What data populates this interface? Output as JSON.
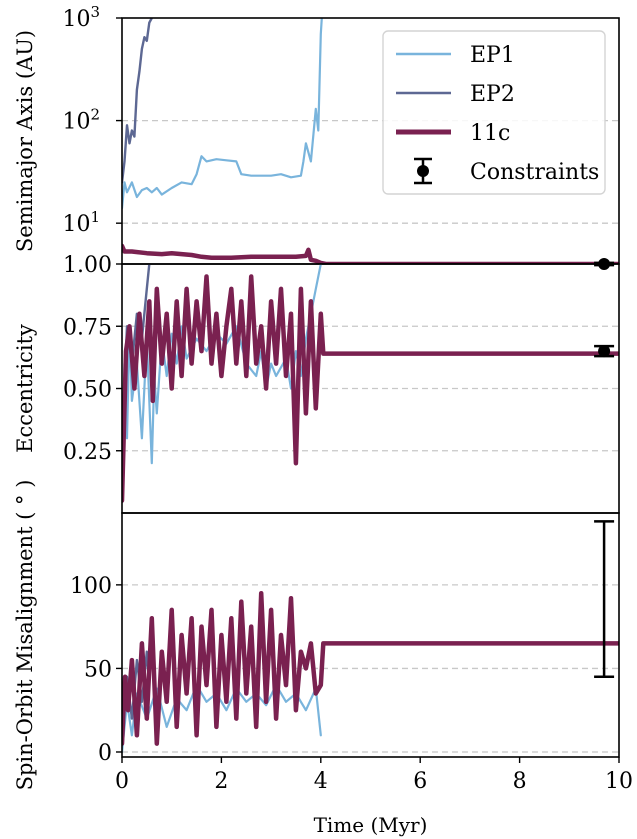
{
  "chart_data": [
    {
      "type": "line",
      "panel": "top",
      "ylabel": "Semimajor Axis (AU)",
      "yscale": "log",
      "ylim": [
        4,
        1000
      ],
      "xlim": [
        0,
        10
      ],
      "yticks": [
        {
          "v": 10,
          "label": "10"
        },
        {
          "v": 100,
          "label": "10"
        },
        {
          "v": 1000,
          "label": "10"
        }
      ],
      "ytick_sup": [
        "1",
        "2",
        "3"
      ],
      "grid": true,
      "legend": {
        "position": "top-right",
        "entries": [
          {
            "label": "EP1",
            "color": "#79b4dc",
            "kind": "line-thin"
          },
          {
            "label": "EP2",
            "color": "#5d6893",
            "kind": "line-thin"
          },
          {
            "label": "11c",
            "color": "#7a2150",
            "kind": "line-thick"
          },
          {
            "label": "Constraints",
            "color": "#000000",
            "kind": "errorbar"
          }
        ]
      },
      "series": [
        {
          "name": "EP1",
          "color": "#79b4dc",
          "x": [
            0.0,
            0.05,
            0.1,
            0.2,
            0.3,
            0.4,
            0.5,
            0.6,
            0.7,
            0.8,
            1.0,
            1.2,
            1.4,
            1.5,
            1.6,
            1.7,
            1.9,
            2.1,
            2.3,
            2.4,
            2.6,
            2.8,
            3.0,
            3.2,
            3.4,
            3.6,
            3.65,
            3.7,
            3.8,
            3.9,
            3.95,
            4.0,
            4.02
          ],
          "y": [
            14,
            25,
            20,
            25,
            18,
            21,
            22,
            20,
            22,
            19,
            22,
            25,
            24,
            30,
            45,
            40,
            42,
            41,
            40,
            30,
            29,
            29,
            29,
            30,
            28,
            29,
            40,
            60,
            40,
            130,
            80,
            700,
            1000
          ]
        },
        {
          "name": "EP2",
          "color": "#5d6893",
          "x": [
            0.0,
            0.05,
            0.1,
            0.15,
            0.2,
            0.25,
            0.3,
            0.35,
            0.4,
            0.45,
            0.5,
            0.55,
            0.6
          ],
          "y": [
            25,
            40,
            90,
            60,
            80,
            70,
            200,
            300,
            500,
            650,
            600,
            900,
            1000
          ]
        },
        {
          "name": "11c",
          "color": "#7a2150",
          "x": [
            0.0,
            0.05,
            0.2,
            0.5,
            0.8,
            1.0,
            1.4,
            1.6,
            1.8,
            2.2,
            2.6,
            3.0,
            3.5,
            3.7,
            3.75,
            3.8,
            3.9,
            4.0,
            4.1,
            5.0,
            6.0,
            7.0,
            8.0,
            9.0,
            10.0
          ],
          "y": [
            6.0,
            5.3,
            5.3,
            5.1,
            5.0,
            5.1,
            4.9,
            4.7,
            4.6,
            4.6,
            4.7,
            4.7,
            4.7,
            4.8,
            5.5,
            4.4,
            4.3,
            4.1,
            4.0,
            4.0,
            4.0,
            4.0,
            4.0,
            4.0,
            4.0
          ]
        }
      ],
      "constraint": {
        "x": 9.7,
        "y": 4.0,
        "yerr": [
          0.1,
          0.1
        ],
        "color": "#000000"
      }
    },
    {
      "type": "line",
      "panel": "middle",
      "ylabel": "Eccentricity",
      "ylim": [
        0,
        1
      ],
      "xlim": [
        0,
        10
      ],
      "yticks": [
        {
          "v": 0.25,
          "label": "0.25"
        },
        {
          "v": 0.5,
          "label": "0.50"
        },
        {
          "v": 0.75,
          "label": "0.75"
        },
        {
          "v": 1.0,
          "label": "1.00"
        }
      ],
      "grid": true,
      "series": [
        {
          "name": "EP1",
          "color": "#79b4dc",
          "x": [
            0.0,
            0.05,
            0.1,
            0.15,
            0.2,
            0.3,
            0.4,
            0.5,
            0.6,
            0.65,
            0.7,
            0.8,
            0.9,
            1.0,
            1.1,
            1.2,
            1.3,
            1.5,
            1.7,
            1.9,
            2.1,
            2.3,
            2.5,
            2.7,
            2.8,
            2.9,
            3.0,
            3.1,
            3.3,
            3.4,
            3.5,
            3.6,
            3.7,
            3.8,
            3.9,
            4.0
          ],
          "y": [
            0.05,
            0.6,
            0.3,
            0.75,
            0.45,
            0.6,
            0.3,
            0.7,
            0.2,
            0.55,
            0.4,
            0.7,
            0.55,
            0.72,
            0.6,
            0.75,
            0.62,
            0.7,
            0.65,
            0.72,
            0.68,
            0.75,
            0.6,
            0.55,
            0.65,
            0.5,
            0.6,
            0.55,
            0.62,
            0.5,
            0.65,
            0.55,
            0.7,
            0.8,
            0.9,
            1.0
          ]
        },
        {
          "name": "EP2",
          "color": "#5d6893",
          "x": [
            0.0,
            0.1,
            0.2,
            0.3,
            0.4,
            0.5,
            0.55
          ],
          "y": [
            0.3,
            0.75,
            0.6,
            0.8,
            0.7,
            0.9,
            1.0
          ]
        },
        {
          "name": "11c",
          "color": "#7a2150",
          "x": [
            0.0,
            0.08,
            0.15,
            0.25,
            0.35,
            0.45,
            0.55,
            0.62,
            0.7,
            0.8,
            0.9,
            1.0,
            1.1,
            1.2,
            1.3,
            1.4,
            1.5,
            1.6,
            1.7,
            1.8,
            1.9,
            2.0,
            2.1,
            2.2,
            2.3,
            2.4,
            2.5,
            2.6,
            2.7,
            2.8,
            2.9,
            3.0,
            3.1,
            3.2,
            3.3,
            3.4,
            3.5,
            3.6,
            3.7,
            3.8,
            3.9,
            4.0,
            4.05,
            10.0
          ],
          "y": [
            0.05,
            0.65,
            0.75,
            0.5,
            0.8,
            0.55,
            0.85,
            0.45,
            0.9,
            0.6,
            0.8,
            0.5,
            0.85,
            0.55,
            0.9,
            0.6,
            0.85,
            0.65,
            0.95,
            0.6,
            0.8,
            0.55,
            0.75,
            0.9,
            0.6,
            0.85,
            0.55,
            0.95,
            0.6,
            0.75,
            0.5,
            0.85,
            0.6,
            0.9,
            0.55,
            0.8,
            0.2,
            0.9,
            0.4,
            0.85,
            0.42,
            0.8,
            0.64,
            0.64
          ]
        }
      ],
      "constraint": {
        "x": 9.7,
        "y": 0.65,
        "yerr": [
          0.02,
          0.02
        ],
        "color": "#000000"
      }
    },
    {
      "type": "line",
      "panel": "bottom",
      "xlabel": "Time (Myr)",
      "ylabel": "Spin-Orbit Misalignment ( ° )",
      "ylim": [
        -3,
        143
      ],
      "xlim": [
        0,
        10
      ],
      "yticks": [
        {
          "v": 0,
          "label": "0"
        },
        {
          "v": 50,
          "label": "50"
        },
        {
          "v": 100,
          "label": "100"
        }
      ],
      "xticks": [
        {
          "v": 0,
          "label": "0"
        },
        {
          "v": 2,
          "label": "2"
        },
        {
          "v": 4,
          "label": "4"
        },
        {
          "v": 6,
          "label": "6"
        },
        {
          "v": 8,
          "label": "8"
        },
        {
          "v": 10,
          "label": "10"
        }
      ],
      "grid": true,
      "series": [
        {
          "name": "EP1",
          "color": "#79b4dc",
          "x": [
            0.0,
            0.1,
            0.2,
            0.3,
            0.5,
            0.7,
            0.9,
            1.1,
            1.3,
            1.5,
            1.7,
            1.9,
            2.1,
            2.3,
            2.5,
            2.7,
            2.9,
            3.1,
            3.3,
            3.5,
            3.7,
            3.9,
            4.0
          ],
          "y": [
            0,
            30,
            10,
            35,
            20,
            38,
            15,
            32,
            25,
            40,
            30,
            35,
            25,
            38,
            30,
            35,
            28,
            40,
            30,
            35,
            25,
            38,
            10
          ]
        },
        {
          "name": "EP2",
          "color": "#5d6893",
          "x": [
            0.0,
            0.1,
            0.2,
            0.3,
            0.4,
            0.5,
            0.55
          ],
          "y": [
            10,
            45,
            20,
            55,
            30,
            60,
            40
          ]
        },
        {
          "name": "11c",
          "color": "#7a2150",
          "x": [
            0.0,
            0.06,
            0.12,
            0.2,
            0.3,
            0.4,
            0.5,
            0.6,
            0.7,
            0.8,
            0.9,
            1.0,
            1.1,
            1.2,
            1.3,
            1.4,
            1.5,
            1.6,
            1.7,
            1.8,
            1.9,
            2.0,
            2.1,
            2.2,
            2.3,
            2.4,
            2.5,
            2.6,
            2.7,
            2.8,
            2.9,
            3.0,
            3.1,
            3.2,
            3.3,
            3.4,
            3.5,
            3.6,
            3.7,
            3.8,
            3.9,
            4.0,
            4.05,
            10.0
          ],
          "y": [
            5,
            45,
            25,
            55,
            10,
            65,
            20,
            80,
            5,
            60,
            30,
            85,
            15,
            70,
            35,
            80,
            10,
            75,
            40,
            85,
            15,
            70,
            30,
            80,
            20,
            90,
            35,
            75,
            15,
            95,
            30,
            85,
            20,
            70,
            40,
            92,
            25,
            60,
            50,
            65,
            35,
            40,
            65,
            65
          ]
        }
      ],
      "constraint": {
        "x": 9.7,
        "y": 90,
        "yerr": [
          45,
          48
        ],
        "color": "#000000"
      }
    }
  ]
}
